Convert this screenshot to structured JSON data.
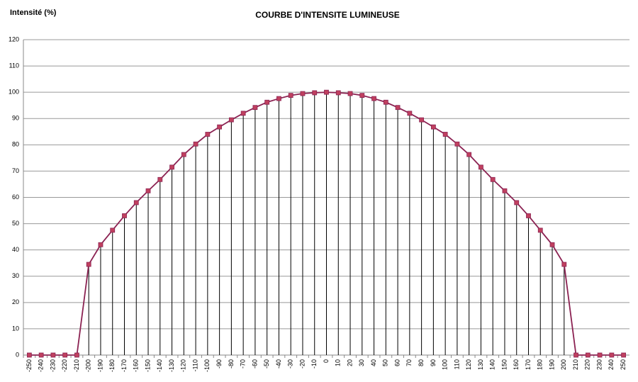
{
  "chart_data": {
    "type": "line",
    "title": "COURBE D'INTENSITE LUMINEUSE",
    "y_label": "Intensité (%)",
    "categories": [
      "-250",
      "-240",
      "-230",
      "-220",
      "-210",
      "-200",
      "-190",
      "-180",
      "-170",
      "-160",
      "-150",
      "-140",
      "-130",
      "-120",
      "-110",
      "-100",
      "-90",
      "-80",
      "-70",
      "-60",
      "-50",
      "-40",
      "-30",
      "-20",
      "-10",
      "0",
      "10",
      "20",
      "30",
      "40",
      "50",
      "60",
      "70",
      "80",
      "90",
      "100",
      "110",
      "120",
      "130",
      "140",
      "150",
      "160",
      "170",
      "180",
      "190",
      "200",
      "210",
      "220",
      "230",
      "240",
      "250"
    ],
    "series": [
      {
        "color": "#8b2252",
        "marker_color": "#c0405f",
        "values": [
          0,
          0,
          0,
          0,
          0,
          34.5,
          42,
          47.5,
          53,
          58,
          62.5,
          66.8,
          71.5,
          76.3,
          80.3,
          84,
          86.8,
          89.5,
          92,
          94.2,
          96.2,
          97.6,
          98.8,
          99.5,
          99.8,
          100,
          99.8,
          99.5,
          98.8,
          97.6,
          96.2,
          94.2,
          92,
          89.5,
          86.8,
          84,
          80.3,
          76.3,
          71.5,
          66.8,
          62.5,
          58,
          53,
          47.5,
          42,
          34.5,
          0,
          0,
          0,
          0,
          0
        ]
      }
    ],
    "ylim": [
      0,
      120
    ],
    "yticks": [
      0,
      10,
      20,
      30,
      40,
      50,
      60,
      70,
      80,
      90,
      100,
      110,
      120
    ],
    "grid": true,
    "drop_lines": true
  }
}
